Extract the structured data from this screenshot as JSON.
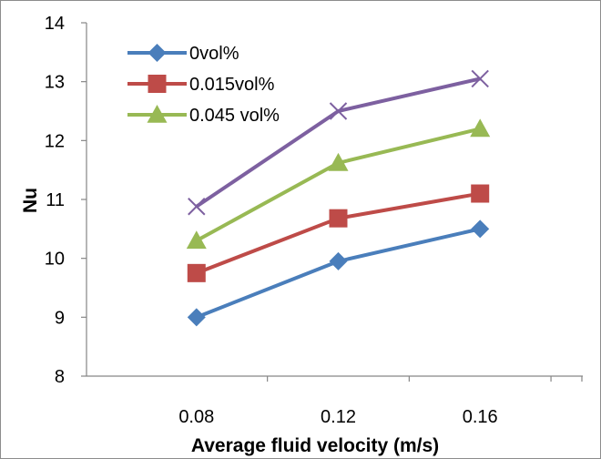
{
  "chart_data": {
    "type": "line",
    "xlabel": "Average fluid velocity (m/s)",
    "ylabel": "Nu",
    "categories": [
      "0.08",
      "0.12",
      "0.16"
    ],
    "ylim": [
      8,
      14
    ],
    "yticks": [
      "8",
      "9",
      "10",
      "11",
      "12",
      "13",
      "14"
    ],
    "grid": false,
    "legend_position": "top-left",
    "series": [
      {
        "name": "0vol%",
        "values": [
          9.0,
          9.95,
          10.5
        ],
        "color": "#4a7ebb",
        "marker": "diamond",
        "legend": true
      },
      {
        "name": "0.015vol%",
        "values": [
          9.75,
          10.68,
          11.1
        ],
        "color": "#be4b48",
        "marker": "square",
        "legend": true
      },
      {
        "name": "0.045 vol%",
        "values": [
          10.3,
          11.62,
          12.2
        ],
        "color": "#98b954",
        "marker": "triangle",
        "legend": true
      },
      {
        "values": [
          10.88,
          12.5,
          13.05
        ],
        "color": "#7d60a0",
        "marker": "x",
        "legend": false
      }
    ]
  }
}
